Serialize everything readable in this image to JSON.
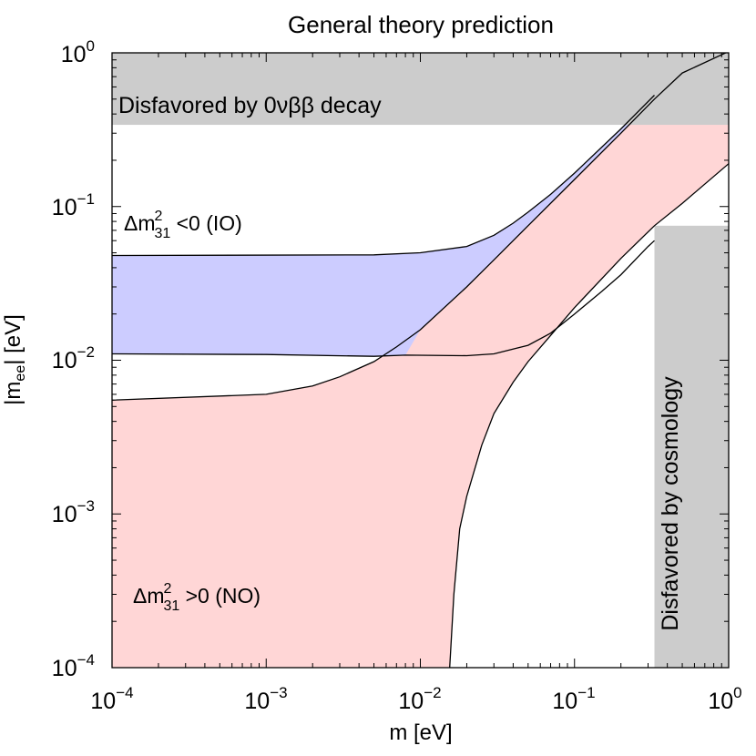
{
  "chart_data": {
    "type": "area",
    "title": "General theory prediction",
    "xlabel": {
      "main": "m [eV]"
    },
    "ylabel": {
      "pre": "|m",
      "sub": "ee",
      "post": "| [eV]"
    },
    "xscale": "log",
    "yscale": "log",
    "xlim": [
      0.0001,
      1
    ],
    "ylim": [
      0.0001,
      1
    ],
    "x_ticks": [
      {
        "base": "10",
        "exp": "−4",
        "value": 0.0001
      },
      {
        "base": "10",
        "exp": "−3",
        "value": 0.001
      },
      {
        "base": "10",
        "exp": "−2",
        "value": 0.01
      },
      {
        "base": "10",
        "exp": "−1",
        "value": 0.1
      },
      {
        "base": "10",
        "exp": "0",
        "value": 1
      }
    ],
    "y_ticks": [
      {
        "base": "10",
        "exp": "−4",
        "value": 0.0001
      },
      {
        "base": "10",
        "exp": "−3",
        "value": 0.001
      },
      {
        "base": "10",
        "exp": "−2",
        "value": 0.01
      },
      {
        "base": "10",
        "exp": "−1",
        "value": 0.1
      },
      {
        "base": "10",
        "exp": "0",
        "value": 1
      }
    ],
    "excluded_regions": [
      {
        "label": "Disfavored by 0νββ decay",
        "orientation": "horizontal",
        "y_min": 0.34,
        "y_max": 1,
        "color": "#cccccc"
      },
      {
        "label": "Disfavored by cosmology",
        "orientation": "vertical",
        "x_min": 0.33,
        "x_max": 1,
        "color": "#cccccc"
      }
    ],
    "bands": [
      {
        "label": {
          "delta": "Δm",
          "sup": "2",
          "sub": "31",
          "rest": " <0 (IO)"
        },
        "color": "#ccccff",
        "upper": [
          [
            0.0001,
            0.048
          ],
          [
            0.005,
            0.0485
          ],
          [
            0.01,
            0.05
          ],
          [
            0.02,
            0.055
          ],
          [
            0.03,
            0.065
          ],
          [
            0.04,
            0.078
          ],
          [
            0.05,
            0.092
          ],
          [
            0.07,
            0.12
          ],
          [
            0.1,
            0.165
          ],
          [
            0.2,
            0.32
          ],
          [
            0.33,
            0.53
          ]
        ],
        "lower": [
          [
            0.0001,
            0.011
          ],
          [
            0.001,
            0.0109
          ],
          [
            0.005,
            0.0106
          ],
          [
            0.008,
            0.0108
          ]
        ]
      },
      {
        "label": {
          "delta": "Δm",
          "sup": "2",
          "sub": "31",
          "rest": " >0 (NO)"
        },
        "color": "#ffd6d6",
        "upper": [
          [
            0.0001,
            0.0055
          ],
          [
            0.001,
            0.006
          ],
          [
            0.002,
            0.0068
          ],
          [
            0.003,
            0.0078
          ],
          [
            0.005,
            0.0098
          ],
          [
            0.007,
            0.0122
          ],
          [
            0.01,
            0.0158
          ],
          [
            0.02,
            0.03
          ],
          [
            0.03,
            0.045
          ],
          [
            0.05,
            0.075
          ],
          [
            0.1,
            0.15
          ],
          [
            0.2,
            0.3
          ],
          [
            0.33,
            0.5
          ],
          [
            0.5,
            0.74
          ],
          [
            1,
            1.02
          ]
        ],
        "lower": [
          [
            0.0155,
            0.0001
          ],
          [
            0.0165,
            0.0003
          ],
          [
            0.018,
            0.0008
          ],
          [
            0.02,
            0.0013
          ],
          [
            0.025,
            0.0028
          ],
          [
            0.03,
            0.0045
          ],
          [
            0.04,
            0.0072
          ],
          [
            0.05,
            0.0098
          ],
          [
            0.07,
            0.0145
          ],
          [
            0.1,
            0.022
          ],
          [
            0.2,
            0.046
          ],
          [
            0.33,
            0.075
          ],
          [
            0.5,
            0.105
          ],
          [
            1,
            0.19
          ]
        ]
      },
      {
        "label": "",
        "color": "#ccccff",
        "role": "IO lower curve beyond crossing",
        "curve": [
          [
            0.008,
            0.0108
          ],
          [
            0.02,
            0.0107
          ],
          [
            0.03,
            0.011
          ],
          [
            0.05,
            0.0125
          ],
          [
            0.07,
            0.015
          ],
          [
            0.1,
            0.02
          ],
          [
            0.15,
            0.028
          ],
          [
            0.2,
            0.036
          ],
          [
            0.3,
            0.055
          ],
          [
            0.33,
            0.06
          ]
        ]
      }
    ],
    "grid": false,
    "legend": "none"
  }
}
